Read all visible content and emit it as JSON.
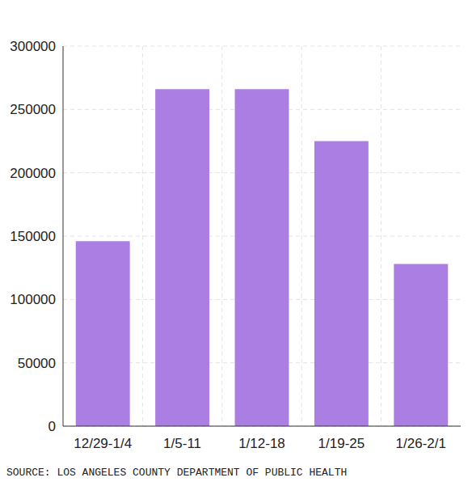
{
  "chart_data": {
    "type": "bar",
    "source": "SOURCE: LOS ANGELES COUNTY DEPARTMENT OF PUBLIC HEALTH",
    "categories": [
      "12/29-1/4",
      "1/5-11",
      "1/12-18",
      "1/19-25",
      "1/26-2/1"
    ],
    "values": [
      146000,
      266000,
      266000,
      225000,
      128000
    ],
    "color": "#ab7ee3",
    "ylim": [
      0,
      300000
    ],
    "yticks": [
      0,
      50000,
      100000,
      150000,
      200000,
      250000,
      300000
    ],
    "grid": true
  }
}
